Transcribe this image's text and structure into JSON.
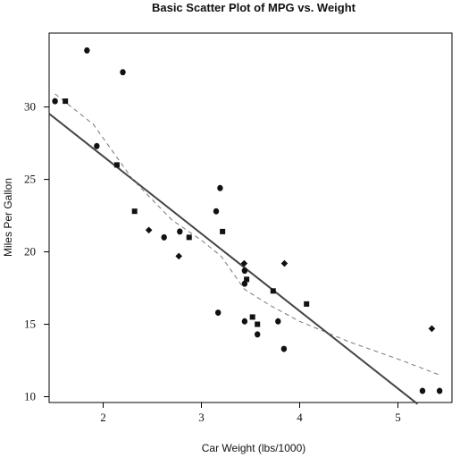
{
  "chart_data": {
    "type": "scatter",
    "title": "Basic Scatter Plot of MPG vs. Weight",
    "xlabel": "Car Weight (lbs/1000)",
    "ylabel": "Miles Per Gallon",
    "xlim": [
      1.45,
      5.55
    ],
    "ylim": [
      9.6,
      35.1
    ],
    "x_ticks": [
      "2",
      "3",
      "4",
      "5"
    ],
    "y_ticks": [
      "10",
      "15",
      "20",
      "25",
      "30"
    ],
    "grid": false,
    "legend": "none",
    "colors": {
      "points": "#111111",
      "regression": "#444444",
      "smooth": "#777777",
      "frame": "#000000"
    },
    "points": [
      {
        "x": 1.51,
        "y": 30.4,
        "marker": "circle"
      },
      {
        "x": 1.615,
        "y": 30.4,
        "marker": "square"
      },
      {
        "x": 1.835,
        "y": 33.9,
        "marker": "circle"
      },
      {
        "x": 1.935,
        "y": 27.3,
        "marker": "circle"
      },
      {
        "x": 2.14,
        "y": 26.0,
        "marker": "square"
      },
      {
        "x": 2.2,
        "y": 32.4,
        "marker": "circle"
      },
      {
        "x": 2.32,
        "y": 22.8,
        "marker": "square"
      },
      {
        "x": 2.465,
        "y": 21.5,
        "marker": "diamond"
      },
      {
        "x": 2.62,
        "y": 21.0,
        "marker": "circle"
      },
      {
        "x": 2.77,
        "y": 19.7,
        "marker": "diamond"
      },
      {
        "x": 2.78,
        "y": 21.4,
        "marker": "circle"
      },
      {
        "x": 2.875,
        "y": 21.0,
        "marker": "square"
      },
      {
        "x": 3.15,
        "y": 22.8,
        "marker": "circle"
      },
      {
        "x": 3.17,
        "y": 15.8,
        "marker": "circle"
      },
      {
        "x": 3.19,
        "y": 24.4,
        "marker": "circle"
      },
      {
        "x": 3.215,
        "y": 21.4,
        "marker": "square"
      },
      {
        "x": 3.435,
        "y": 19.2,
        "marker": "diamond"
      },
      {
        "x": 3.44,
        "y": 18.7,
        "marker": "circle"
      },
      {
        "x": 3.44,
        "y": 17.8,
        "marker": "circle"
      },
      {
        "x": 3.44,
        "y": 15.2,
        "marker": "circle"
      },
      {
        "x": 3.46,
        "y": 18.1,
        "marker": "square"
      },
      {
        "x": 3.52,
        "y": 15.5,
        "marker": "square"
      },
      {
        "x": 3.57,
        "y": 15.0,
        "marker": "square"
      },
      {
        "x": 3.57,
        "y": 14.3,
        "marker": "circle"
      },
      {
        "x": 3.73,
        "y": 17.3,
        "marker": "square"
      },
      {
        "x": 3.78,
        "y": 15.2,
        "marker": "circle"
      },
      {
        "x": 3.84,
        "y": 13.3,
        "marker": "circle"
      },
      {
        "x": 3.845,
        "y": 19.2,
        "marker": "diamond"
      },
      {
        "x": 4.07,
        "y": 16.4,
        "marker": "square"
      },
      {
        "x": 5.25,
        "y": 10.4,
        "marker": "circle"
      },
      {
        "x": 5.345,
        "y": 14.7,
        "marker": "diamond"
      },
      {
        "x": 5.424,
        "y": 10.4,
        "marker": "circle"
      }
    ],
    "regression_line": {
      "intercept": 37.285,
      "slope": -5.344,
      "x_range": [
        1.45,
        5.2
      ]
    },
    "lowess_curve": [
      {
        "x": 1.51,
        "y": 30.9
      },
      {
        "x": 1.9,
        "y": 28.8
      },
      {
        "x": 2.3,
        "y": 25.0
      },
      {
        "x": 2.7,
        "y": 22.2
      },
      {
        "x": 3.0,
        "y": 20.8
      },
      {
        "x": 3.2,
        "y": 19.7
      },
      {
        "x": 3.44,
        "y": 17.4
      },
      {
        "x": 3.7,
        "y": 16.3
      },
      {
        "x": 4.0,
        "y": 15.2
      },
      {
        "x": 4.5,
        "y": 13.8
      },
      {
        "x": 5.0,
        "y": 12.6
      },
      {
        "x": 5.424,
        "y": 11.5
      }
    ]
  }
}
